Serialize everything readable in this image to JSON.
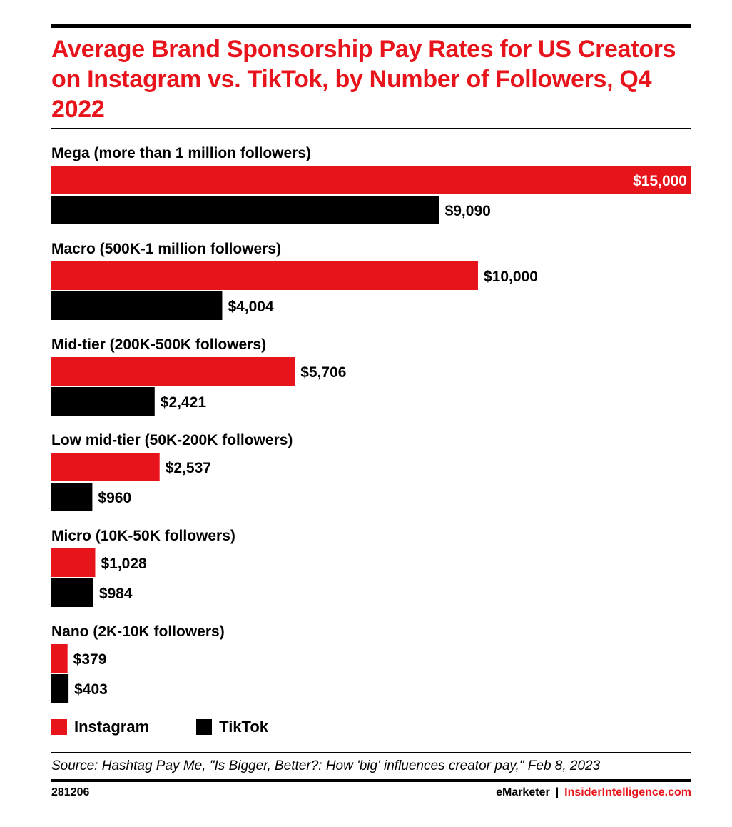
{
  "title": "Average Brand Sponsorship Pay Rates for US Creators on Instagram vs. TikTok, by Number of Followers, Q4 2022",
  "legend": {
    "instagram": "Instagram",
    "tiktok": "TikTok"
  },
  "source": "Source: Hashtag Pay Me, \"Is Bigger, Better?: How 'big' influences creator pay,\" Feb 8, 2023",
  "chart_id": "281206",
  "brand": {
    "emarketer": "eMarketer",
    "separator": "|",
    "insider": "InsiderIntelligence.com"
  },
  "colors": {
    "instagram": "#e8141c",
    "tiktok": "#000000",
    "value_on_bar": "#ffffff"
  },
  "chart_data": {
    "type": "bar",
    "orientation": "horizontal",
    "categories": [
      "Mega (more than 1 million followers)",
      "Macro (500K-1 million followers)",
      "Mid-tier (200K-500K followers)",
      "Low mid-tier (50K-200K followers)",
      "Micro (10K-50K followers)",
      "Nano (2K-10K followers)"
    ],
    "series": [
      {
        "name": "Instagram",
        "values": [
          15000,
          10000,
          5706,
          2537,
          1028,
          379
        ],
        "labels": [
          "$15,000",
          "$10,000",
          "$5,706",
          "$2,537",
          "$1,028",
          "$379"
        ]
      },
      {
        "name": "TikTok",
        "values": [
          9090,
          4004,
          2421,
          960,
          984,
          403
        ],
        "labels": [
          "$9,090",
          "$4,004",
          "$2,421",
          "$960",
          "$984",
          "$403"
        ]
      }
    ],
    "xlim": [
      0,
      15000
    ],
    "grid": false,
    "legend_position": "bottom-left"
  }
}
